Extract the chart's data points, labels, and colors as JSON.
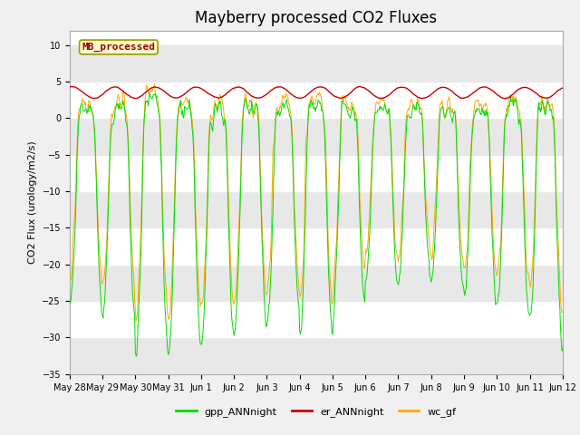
{
  "title": "Mayberry processed CO2 Fluxes",
  "ylabel": "CO2 Flux (urology/m2/s)",
  "ylim": [
    -35,
    12
  ],
  "yticks": [
    -35,
    -30,
    -25,
    -20,
    -15,
    -10,
    -5,
    0,
    5,
    10
  ],
  "fig_bg": "#f0f0f0",
  "plot_bg": "#ffffff",
  "band_colors": [
    "#e8e8e8",
    "#ffffff"
  ],
  "legend_label": "MB_processed",
  "line_colors": {
    "gpp": "#00dd00",
    "er": "#cc0000",
    "wc": "#ffaa00"
  },
  "legend_entries": [
    "gpp_ANNnight",
    "er_ANNnight",
    "wc_gf"
  ],
  "legend_colors": [
    "#00dd00",
    "#cc0000",
    "#ffaa00"
  ],
  "n_days": 16,
  "points_per_day": 48,
  "title_fontsize": 12,
  "axis_fontsize": 8,
  "tick_fontsize": 7
}
